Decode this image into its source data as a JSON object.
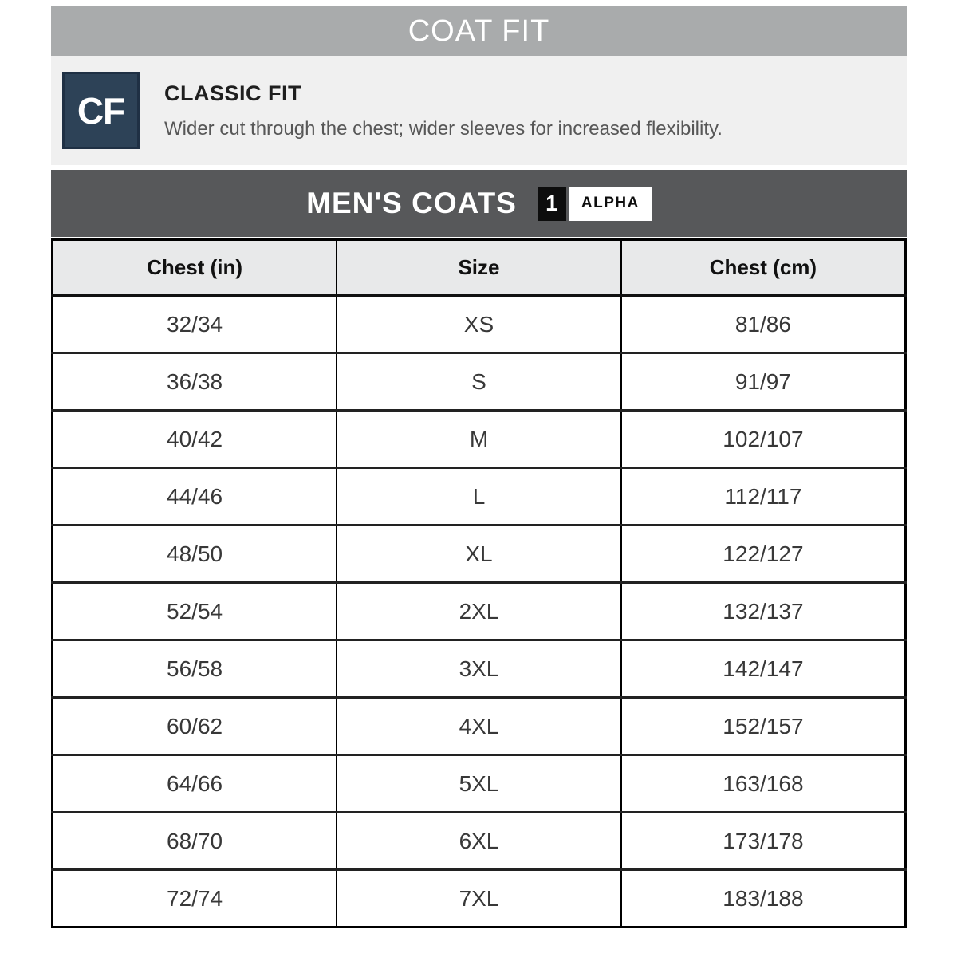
{
  "header": {
    "title": "COAT FIT",
    "bar_color": "#a9abac",
    "text_color": "#ffffff"
  },
  "fit_section": {
    "badge_label": "CF",
    "badge_color": "#2d4257",
    "title": "CLASSIC FIT",
    "description": "Wider cut through the chest; wider sleeves for increased flexibility.",
    "panel_color": "#f0f0f0"
  },
  "table_section": {
    "title": "MEN'S COATS",
    "bar_color": "#57585a",
    "badge_number": "1",
    "badge_label": "ALPHA",
    "table": {
      "headers": [
        "Chest (in)",
        "Size",
        "Chest (cm)"
      ],
      "header_bg": "#e8e9ea",
      "rows": [
        [
          "32/34",
          "XS",
          "81/86"
        ],
        [
          "36/38",
          "S",
          "91/97"
        ],
        [
          "40/42",
          "M",
          "102/107"
        ],
        [
          "44/46",
          "L",
          "112/117"
        ],
        [
          "48/50",
          "XL",
          "122/127"
        ],
        [
          "52/54",
          "2XL",
          "132/137"
        ],
        [
          "56/58",
          "3XL",
          "142/147"
        ],
        [
          "60/62",
          "4XL",
          "152/157"
        ],
        [
          "64/66",
          "5XL",
          "163/168"
        ],
        [
          "68/70",
          "6XL",
          "173/178"
        ],
        [
          "72/74",
          "7XL",
          "183/188"
        ]
      ]
    }
  }
}
